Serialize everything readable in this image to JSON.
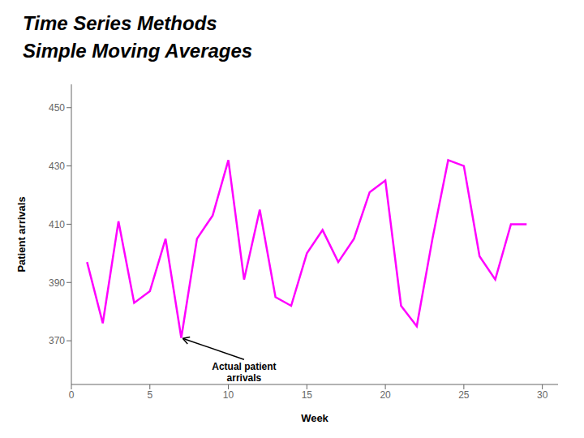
{
  "chart_data": {
    "type": "line",
    "title": "Time Series Methods",
    "subtitle": "Simple Moving Averages",
    "xlabel": "Week",
    "ylabel": "Patient arrivals",
    "x": [
      1,
      2,
      3,
      4,
      5,
      6,
      7,
      8,
      9,
      10,
      11,
      12,
      13,
      14,
      15,
      16,
      17,
      18,
      19,
      20,
      21,
      22,
      23,
      24,
      25,
      26,
      27,
      28,
      29
    ],
    "values": [
      397,
      376,
      411,
      383,
      387,
      405,
      371,
      405,
      413,
      432,
      391,
      415,
      385,
      382,
      400,
      408,
      397,
      405,
      421,
      425,
      382,
      375,
      405,
      432,
      430,
      399,
      391,
      410,
      410
    ],
    "color": "#FF00FF",
    "xlim": [
      0,
      31
    ],
    "ylim": [
      355,
      458
    ],
    "xticks": [
      0,
      5,
      10,
      15,
      20,
      25,
      30
    ],
    "yticks": [
      370,
      390,
      410,
      430,
      450
    ],
    "grid": false,
    "annotations": [
      {
        "text": "Actual patient\narrivals",
        "x": 11,
        "y": 363,
        "arrow_x": 7,
        "arrow_y": 371
      }
    ]
  }
}
